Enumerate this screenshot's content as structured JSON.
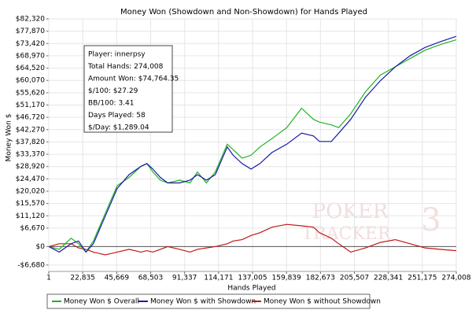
{
  "chart_data": {
    "type": "line",
    "title": "Money Won (Showdown and Non-Showdown) for Hands Played",
    "xlabel": "Hands Played",
    "ylabel": "Money Won $",
    "watermark": [
      "POKER",
      "TRACKER",
      "3"
    ],
    "info": [
      "Player: innerpsy",
      "Total Hands: 274,008",
      "Amount Won: $74,764.35",
      "$/100: $27.29",
      "BB/100: 3.41",
      "Days Played: 58",
      "$/Day: $1,289.04"
    ],
    "x": [
      1,
      7000,
      15000,
      20000,
      25000,
      30000,
      38000,
      46000,
      54000,
      62000,
      66000,
      70000,
      75000,
      80000,
      88000,
      95000,
      100000,
      106000,
      112000,
      120000,
      124000,
      130000,
      136000,
      142000,
      150000,
      160000,
      170000,
      178000,
      182000,
      190000,
      195000,
      203000,
      213000,
      223000,
      233000,
      243000,
      253000,
      263000,
      274008
    ],
    "series": [
      {
        "name": "Money Won $ Overall",
        "color": "#22b222",
        "values": [
          0,
          -1000,
          3000,
          1000,
          -2000,
          2000,
          12000,
          22000,
          25000,
          29000,
          30000,
          27000,
          24000,
          23000,
          24000,
          23000,
          27000,
          23000,
          27000,
          37000,
          35000,
          32000,
          33000,
          36000,
          39000,
          43000,
          50000,
          46000,
          45000,
          44000,
          43000,
          48000,
          56000,
          62000,
          65000,
          68000,
          71000,
          73000,
          74764
        ]
      },
      {
        "name": "Money Won $ with Showdown",
        "color": "#1a1aa8",
        "values": [
          0,
          -2000,
          1000,
          2000,
          -2000,
          1000,
          11000,
          21000,
          26000,
          29000,
          30000,
          28000,
          25000,
          23000,
          23000,
          24000,
          26000,
          24000,
          26000,
          36000,
          33000,
          30000,
          28000,
          30000,
          34000,
          37000,
          41000,
          40000,
          38000,
          38000,
          41000,
          46000,
          54000,
          60000,
          65000,
          69000,
          72000,
          74000,
          76000
        ]
      },
      {
        "name": "Money Won $ without Showdown",
        "color": "#c01818",
        "values": [
          0,
          1000,
          1000,
          -500,
          -1000,
          -2000,
          -3000,
          -2000,
          -1000,
          -2000,
          -1500,
          -2000,
          -1000,
          0,
          -1000,
          -2000,
          -1000,
          -500,
          0,
          1000,
          2000,
          2500,
          4000,
          5000,
          7000,
          8000,
          7500,
          7000,
          5000,
          3000,
          1000,
          -2000,
          -500,
          1500,
          2500,
          1000,
          -500,
          -1000,
          -1500
        ]
      }
    ],
    "xlim": [
      1,
      274008
    ],
    "xticks": [
      1,
      {
        "value": 22835,
        "label": "22,835"
      },
      {
        "value": 45669,
        "label": "45,669"
      },
      {
        "value": 68503,
        "label": "68,503"
      },
      {
        "value": 91337,
        "label": "91,337"
      },
      {
        "value": 114171,
        "label": "114,171"
      },
      {
        "value": 137005,
        "label": "137,005"
      },
      {
        "value": 159839,
        "label": "159,839"
      },
      {
        "value": 182673,
        "label": "182,673"
      },
      {
        "value": 205507,
        "label": "205,507"
      },
      {
        "value": 228341,
        "label": "228,341"
      },
      {
        "value": 251175,
        "label": "251,175"
      },
      {
        "value": 274008,
        "label": "274,008"
      }
    ],
    "ylim": [
      -9000,
      82320
    ],
    "yticks": [
      {
        "value": -6680,
        "label": "-$6,680"
      },
      {
        "value": 0,
        "label": "$0"
      },
      {
        "value": 6670,
        "label": "$6,670"
      },
      {
        "value": 11120,
        "label": "$11,120"
      },
      {
        "value": 15570,
        "label": "$15,570"
      },
      {
        "value": 20020,
        "label": "$20,020"
      },
      {
        "value": 24470,
        "label": "$24,470"
      },
      {
        "value": 28920,
        "label": "$28,920"
      },
      {
        "value": 33370,
        "label": "$33,370"
      },
      {
        "value": 37820,
        "label": "$37,820"
      },
      {
        "value": 42270,
        "label": "$42,270"
      },
      {
        "value": 46720,
        "label": "$46,720"
      },
      {
        "value": 51170,
        "label": "$51,170"
      },
      {
        "value": 55620,
        "label": "$55,620"
      },
      {
        "value": 60070,
        "label": "$60,070"
      },
      {
        "value": 64520,
        "label": "$64,520"
      },
      {
        "value": 68970,
        "label": "$68,970"
      },
      {
        "value": 73420,
        "label": "$73,420"
      },
      {
        "value": 77870,
        "label": "$77,870"
      },
      {
        "value": 82320,
        "label": "$82,320"
      }
    ],
    "grid": true
  }
}
